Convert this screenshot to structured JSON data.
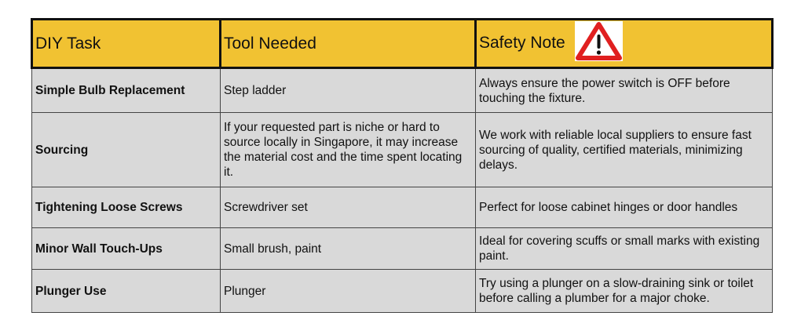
{
  "headers": {
    "task": "DIY Task",
    "tool": "Tool Needed",
    "safety": "Safety Note",
    "safety_icon": "warning-triangle-icon"
  },
  "colors": {
    "header_bg": "#f1c232",
    "cell_bg": "#d9d9d9",
    "icon_red": "#e02020"
  },
  "rows": [
    {
      "task": "Simple Bulb Replacement",
      "tool": "Step ladder",
      "note": "Always ensure the power switch is OFF before touching the fixture."
    },
    {
      "task": "Sourcing",
      "tool": "If your requested part is niche or hard to source locally in Singapore, it may increase the material cost and the time spent locating it.",
      "note": "We work with reliable local suppliers to ensure fast sourcing of quality, certified materials, minimizing delays."
    },
    {
      "task": "Tightening Loose Screws",
      "tool": "Screwdriver set",
      "note": "Perfect for loose cabinet hinges or door handles"
    },
    {
      "task": "Minor Wall Touch-Ups",
      "tool": "Small brush, paint",
      "note": "Ideal for covering scuffs or small marks with existing paint."
    },
    {
      "task": "Plunger Use",
      "tool": "Plunger",
      "note": "Try using a plunger on a slow-draining sink or toilet before calling a plumber for a major choke."
    }
  ]
}
